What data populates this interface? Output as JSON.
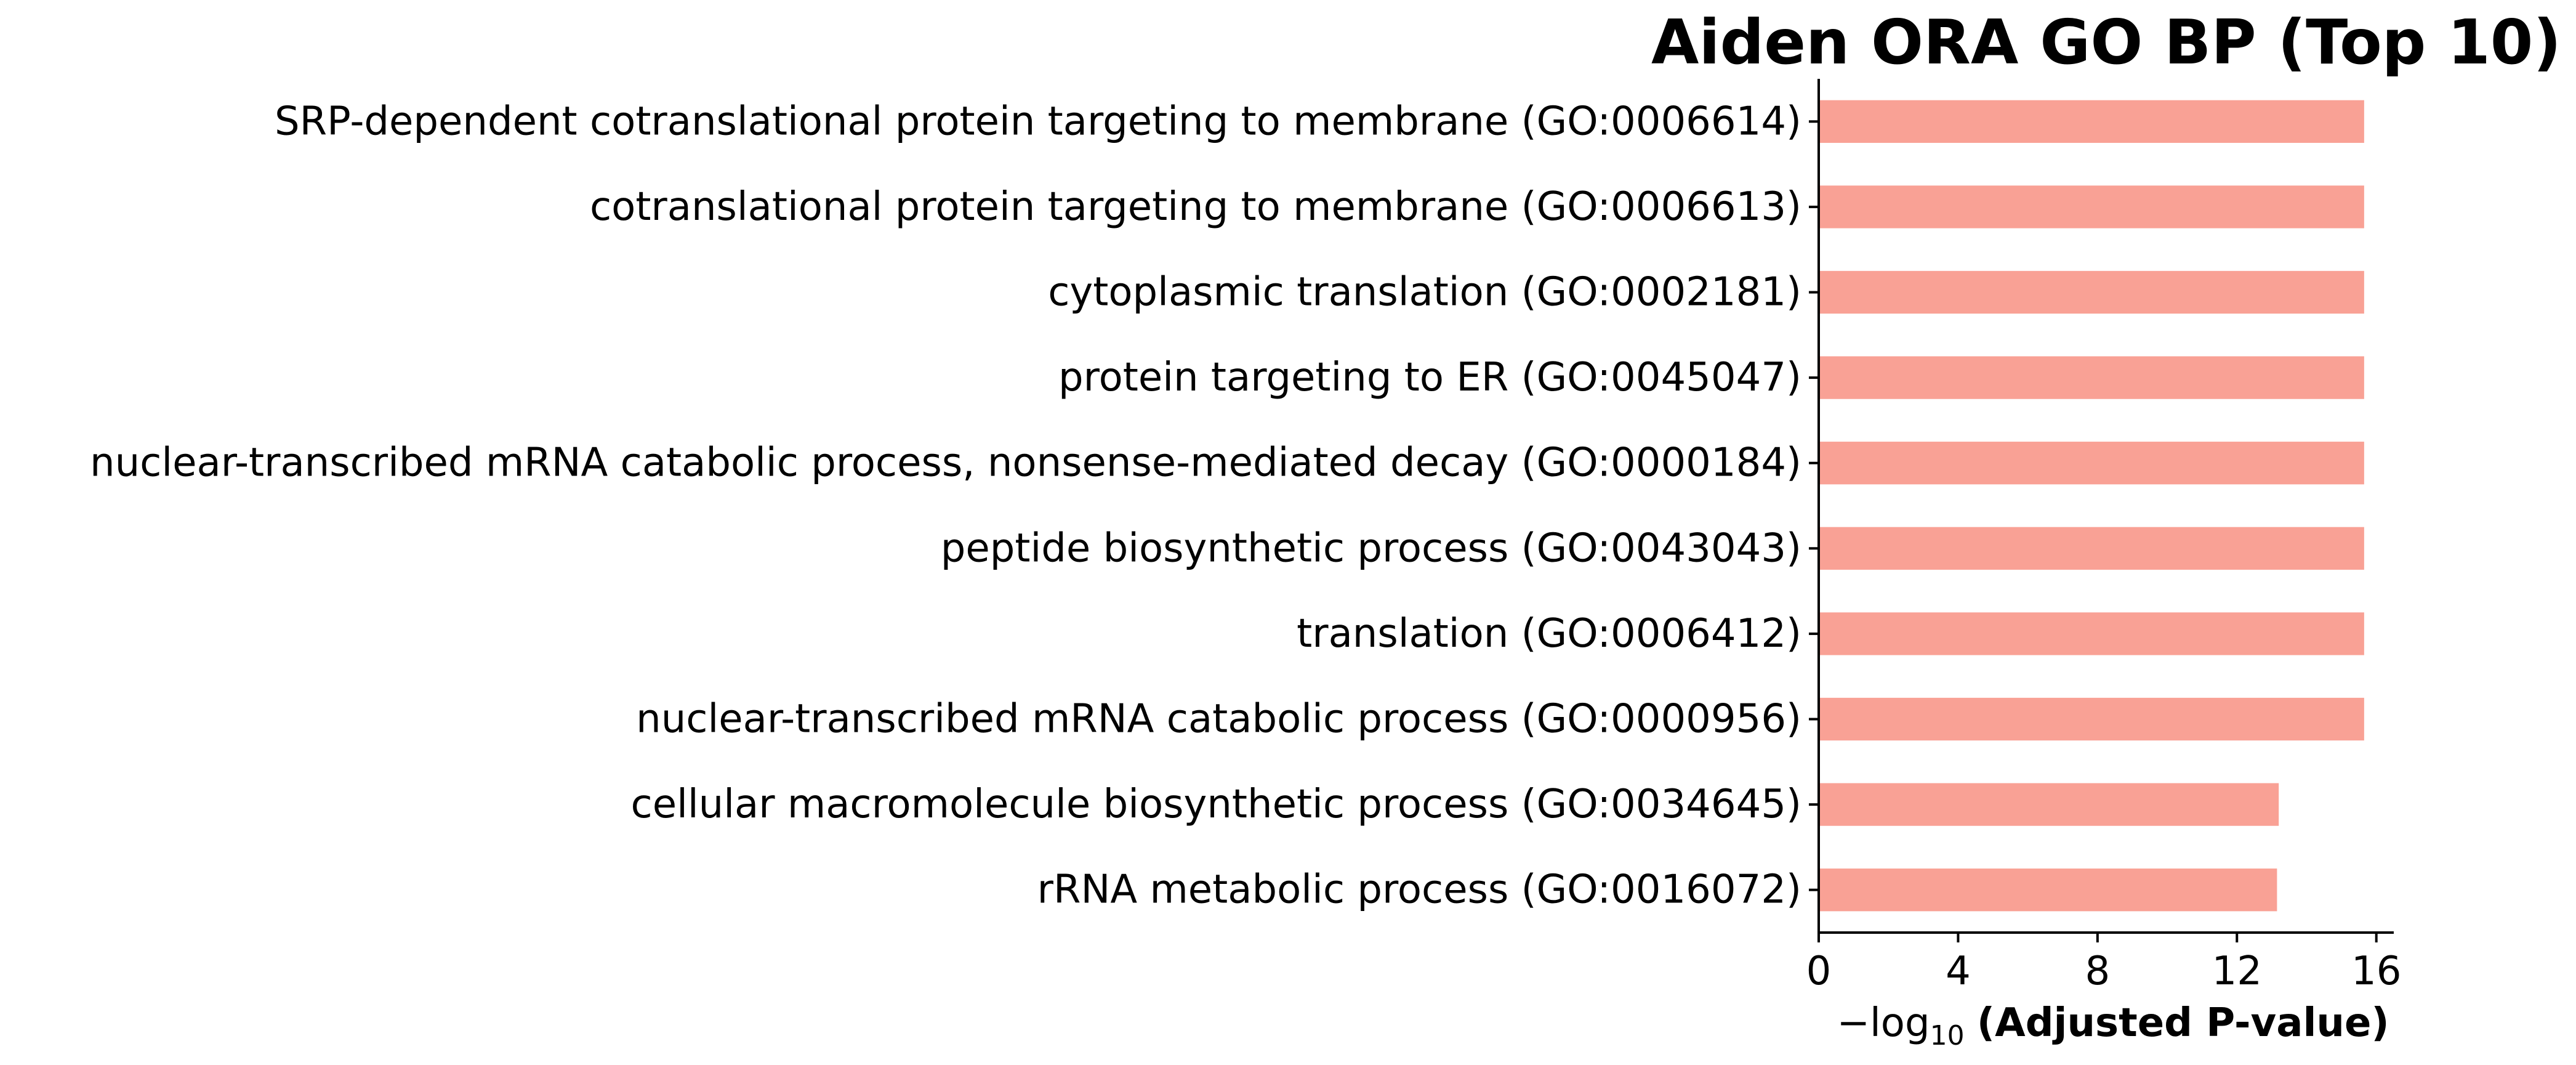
{
  "chart_data": {
    "type": "bar",
    "orientation": "horizontal",
    "title": "Aiden ORA GO BP (Top 10)",
    "xlabel_prefix": "−log",
    "xlabel_subscript": "10",
    "xlabel_main": "(Adjusted P-value)",
    "categories": [
      "SRP-dependent cotranslational protein targeting to membrane (GO:0006614)",
      "cotranslational protein targeting to membrane (GO:0006613)",
      "cytoplasmic translation (GO:0002181)",
      "protein targeting to ER (GO:0045047)",
      "nuclear-transcribed mRNA catabolic process, nonsense-mediated decay (GO:0000184)",
      "peptide biosynthetic process (GO:0043043)",
      "translation (GO:0006412)",
      "nuclear-transcribed mRNA catabolic process (GO:0000956)",
      "cellular macromolecule biosynthetic process (GO:0034645)",
      "rRNA metabolic process (GO:0016072)"
    ],
    "values": [
      15.65,
      15.65,
      15.65,
      15.65,
      15.65,
      15.65,
      15.65,
      15.65,
      13.2,
      13.15
    ],
    "xlim": [
      0,
      16.5
    ],
    "xticks": [
      0,
      4,
      8,
      12,
      16
    ],
    "bar_color": "#f9a195",
    "grid": false,
    "legend": "none"
  }
}
